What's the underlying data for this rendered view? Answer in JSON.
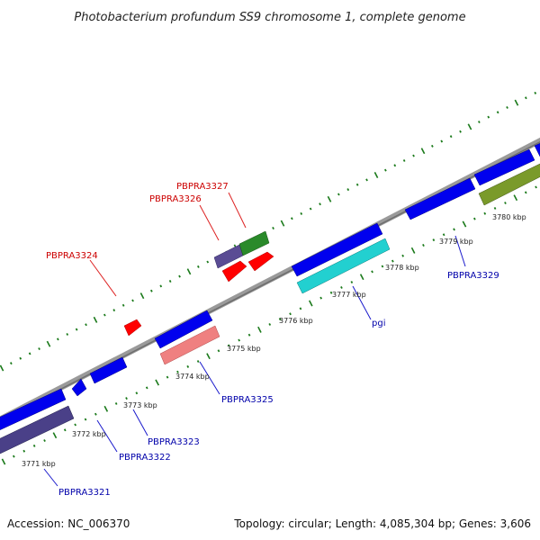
{
  "title": "Photobacterium profundum SS9 chromosome 1, complete genome",
  "footer": {
    "accession": "Accession: NC_006370",
    "summary": "Topology: circular; Length: 4,085,304 bp; Genes: 3,606"
  },
  "colors": {
    "backbone": "#8a8a8a",
    "tick": "#1b7a1b",
    "label_forward": "#cc0000",
    "label_reverse": "#0000aa",
    "leader_forward": "#dd2222",
    "leader_reverse": "#1a1acc"
  },
  "kbp_labels": [
    "3771 kbp",
    "3772 kbp",
    "3773 kbp",
    "3774 kbp",
    "3775 kbp",
    "3776 kbp",
    "3777 kbp",
    "3778 kbp",
    "3779 kbp",
    "3780 kbp"
  ],
  "genes": [
    {
      "name": "PBPRA3321",
      "strand": "reverse"
    },
    {
      "name": "PBPRA3322",
      "strand": "reverse"
    },
    {
      "name": "PBPRA3323",
      "strand": "reverse"
    },
    {
      "name": "PBPRA3324",
      "strand": "forward"
    },
    {
      "name": "PBPRA3325",
      "strand": "reverse"
    },
    {
      "name": "PBPRA3326",
      "strand": "forward"
    },
    {
      "name": "PBPRA3327",
      "strand": "forward"
    },
    {
      "name": "pgi",
      "strand": "reverse"
    },
    {
      "name": "PBPRA3329",
      "strand": "reverse"
    }
  ]
}
